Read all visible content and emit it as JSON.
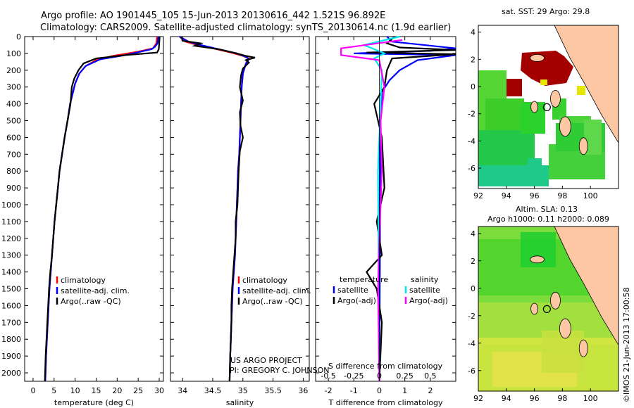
{
  "header": {
    "line1": "Argo profile: AO 1901445_105 15-Jun-2013 20130616_442 1.521S 96.892E",
    "line2": "Climatology: CARS2009. Satellite-adjusted climatology: synTS_20130614.nc (1.9d earlier)"
  },
  "colors": {
    "climatology": "#ff0000",
    "satellite": "#0000ff",
    "argo": "#000000",
    "sat_salinity": "#00e5ee",
    "argo_salinity": "#ff00ff"
  },
  "attribution": {
    "line1": "US ARGO PROJECT",
    "line2": "PI: GREGORY C. JOHNSON"
  },
  "map_sst": {
    "title": "sat. SST: 29 Argo: 29.8"
  },
  "map_sla": {
    "title1": "Altim. SLA: 0.13",
    "title2": "Argo h1000: 0.11 h2000: 0.089"
  },
  "side_label": "©IMOS 21-Jun-2013 17:00:58",
  "chart_data": [
    {
      "id": "temperature",
      "type": "line",
      "xlabel": "temperature (deg C)",
      "ylabel": "",
      "xlim": [
        -2,
        31
      ],
      "ylim": [
        0,
        2050
      ],
      "y_reversed": true,
      "xticks": [
        0,
        5,
        10,
        15,
        20,
        25,
        30
      ],
      "yticks": [
        0,
        100,
        200,
        300,
        400,
        500,
        600,
        700,
        800,
        900,
        1000,
        1100,
        1200,
        1300,
        1400,
        1500,
        1600,
        1700,
        1800,
        1900,
        2000
      ],
      "legend": [
        "climatology",
        "satellite-adj. clim.",
        "Argo(..raw -QC)"
      ],
      "series": [
        {
          "name": "climatology",
          "color": "#ff0000",
          "points": [
            [
              29.5,
              0
            ],
            [
              29.3,
              40
            ],
            [
              28.5,
              70
            ],
            [
              25,
              90
            ],
            [
              19,
              115
            ],
            [
              15,
              140
            ],
            [
              12.5,
              175
            ],
            [
              11,
              220
            ],
            [
              10,
              280
            ],
            [
              9.5,
              330
            ],
            [
              8.8,
              400
            ],
            [
              8.2,
              500
            ],
            [
              7.5,
              600
            ],
            [
              6.9,
              700
            ],
            [
              6.3,
              800
            ],
            [
              5.9,
              900
            ],
            [
              5.5,
              1000
            ],
            [
              5.1,
              1100
            ],
            [
              4.8,
              1200
            ],
            [
              4.5,
              1300
            ],
            [
              4.2,
              1400
            ],
            [
              3.9,
              1500
            ],
            [
              3.7,
              1600
            ],
            [
              3.5,
              1700
            ],
            [
              3.3,
              1800
            ],
            [
              3.1,
              1900
            ],
            [
              2.9,
              2050
            ]
          ]
        },
        {
          "name": "satellite-adj. clim.",
          "color": "#0000ff",
          "points": [
            [
              29.8,
              0
            ],
            [
              29.6,
              40
            ],
            [
              29,
              60
            ],
            [
              28.2,
              75
            ],
            [
              22,
              110
            ],
            [
              16,
              135
            ],
            [
              12.5,
              175
            ],
            [
              11,
              220
            ],
            [
              10,
              280
            ],
            [
              9.5,
              330
            ],
            [
              8.8,
              400
            ],
            [
              8.2,
              500
            ],
            [
              7.5,
              600
            ],
            [
              6.9,
              700
            ],
            [
              6.3,
              800
            ],
            [
              5.9,
              900
            ],
            [
              5.5,
              1000
            ],
            [
              5.1,
              1100
            ],
            [
              4.8,
              1200
            ],
            [
              4.5,
              1300
            ],
            [
              4.2,
              1400
            ],
            [
              3.9,
              1500
            ],
            [
              3.7,
              1600
            ],
            [
              3.5,
              1700
            ],
            [
              3.3,
              1800
            ],
            [
              3.1,
              1900
            ],
            [
              2.9,
              2050
            ]
          ]
        },
        {
          "name": "Argo(..raw -QC)",
          "color": "#000000",
          "points": [
            [
              30.1,
              0
            ],
            [
              30,
              40
            ],
            [
              29.9,
              75
            ],
            [
              29.5,
              95
            ],
            [
              22,
              110
            ],
            [
              15,
              130
            ],
            [
              12,
              160
            ],
            [
              10.8,
              200
            ],
            [
              9.8,
              250
            ],
            [
              9.2,
              300
            ],
            [
              8.9,
              400
            ],
            [
              8.2,
              500
            ],
            [
              7.5,
              600
            ],
            [
              6.9,
              700
            ],
            [
              6.3,
              800
            ],
            [
              5.9,
              900
            ],
            [
              5.5,
              1000
            ],
            [
              5.1,
              1100
            ],
            [
              4.8,
              1200
            ],
            [
              4.5,
              1300
            ],
            [
              4.1,
              1400
            ],
            [
              3.8,
              1500
            ],
            [
              3.6,
              1600
            ],
            [
              3.4,
              1700
            ],
            [
              3.2,
              1800
            ],
            [
              3.0,
              1900
            ],
            [
              2.8,
              2050
            ]
          ]
        }
      ]
    },
    {
      "id": "salinity",
      "type": "line",
      "xlabel": "salinity",
      "ylabel": "",
      "xlim": [
        33.8,
        36.1
      ],
      "ylim": [
        0,
        2050
      ],
      "y_reversed": true,
      "xticks": [
        34,
        34.5,
        35,
        35.5,
        36
      ],
      "legend": [
        "climatology",
        "satellite-adj. clim.",
        "Argo(..raw -QC)"
      ],
      "series": [
        {
          "name": "climatology",
          "color": "#ff0000",
          "points": [
            [
              33.95,
              0
            ],
            [
              34.05,
              30
            ],
            [
              34.2,
              45
            ],
            [
              34.5,
              70
            ],
            [
              34.8,
              95
            ],
            [
              35.0,
              115
            ],
            [
              35.1,
              130
            ],
            [
              35.05,
              160
            ],
            [
              35.0,
              220
            ],
            [
              34.98,
              300
            ],
            [
              34.97,
              400
            ],
            [
              34.96,
              500
            ],
            [
              34.95,
              600
            ],
            [
              34.94,
              700
            ],
            [
              34.92,
              800
            ],
            [
              34.91,
              900
            ],
            [
              34.9,
              1000
            ],
            [
              34.89,
              1100
            ],
            [
              34.88,
              1200
            ],
            [
              34.87,
              1300
            ],
            [
              34.85,
              1400
            ],
            [
              34.83,
              1500
            ],
            [
              34.82,
              1600
            ],
            [
              34.81,
              1700
            ],
            [
              34.8,
              1800
            ],
            [
              34.79,
              1900
            ],
            [
              34.78,
              2050
            ]
          ]
        },
        {
          "name": "satellite-adj. clim.",
          "color": "#0000ff",
          "points": [
            [
              33.95,
              0
            ],
            [
              34.1,
              30
            ],
            [
              34.3,
              50
            ],
            [
              34.6,
              75
            ],
            [
              34.9,
              100
            ],
            [
              35.05,
              120
            ],
            [
              35.1,
              135
            ],
            [
              35.05,
              160
            ],
            [
              35.0,
              220
            ],
            [
              34.98,
              300
            ],
            [
              34.97,
              400
            ],
            [
              34.96,
              500
            ],
            [
              34.95,
              600
            ],
            [
              34.94,
              700
            ],
            [
              34.92,
              800
            ],
            [
              34.91,
              900
            ],
            [
              34.9,
              1000
            ],
            [
              34.89,
              1100
            ],
            [
              34.88,
              1200
            ],
            [
              34.87,
              1300
            ],
            [
              34.85,
              1400
            ],
            [
              34.83,
              1500
            ],
            [
              34.82,
              1600
            ],
            [
              34.81,
              1700
            ],
            [
              34.8,
              1800
            ],
            [
              34.79,
              1900
            ],
            [
              34.78,
              2050
            ]
          ]
        },
        {
          "name": "Argo(..raw -QC)",
          "color": "#000000",
          "points": [
            [
              33.98,
              0
            ],
            [
              34.0,
              25
            ],
            [
              34.3,
              40
            ],
            [
              34.2,
              55
            ],
            [
              34.6,
              75
            ],
            [
              34.9,
              100
            ],
            [
              35.05,
              115
            ],
            [
              35.2,
              125
            ],
            [
              35.05,
              140
            ],
            [
              35.1,
              155
            ],
            [
              35.0,
              190
            ],
            [
              34.97,
              230
            ],
            [
              34.95,
              300
            ],
            [
              35.0,
              380
            ],
            [
              34.95,
              450
            ],
            [
              34.96,
              530
            ],
            [
              35.0,
              600
            ],
            [
              34.95,
              680
            ],
            [
              34.93,
              800
            ],
            [
              34.92,
              900
            ],
            [
              34.91,
              1000
            ],
            [
              34.88,
              1100
            ],
            [
              34.88,
              1200
            ],
            [
              34.86,
              1300
            ],
            [
              34.84,
              1400
            ],
            [
              34.82,
              1500
            ],
            [
              34.81,
              1600
            ],
            [
              34.81,
              1700
            ],
            [
              34.8,
              1800
            ],
            [
              34.79,
              1900
            ],
            [
              34.78,
              2050
            ]
          ]
        }
      ]
    },
    {
      "id": "difference",
      "type": "line",
      "xlabel": "T difference from climatology",
      "xlabel_top": "S difference from climatology",
      "xlim": [
        -2.5,
        3
      ],
      "ylim": [
        0,
        2050
      ],
      "y_reversed": true,
      "xticks": [
        -2,
        -1,
        0,
        1,
        2
      ],
      "xticks_s": [
        "-0.5",
        "-0.25",
        "0",
        "0.25",
        "0.5"
      ],
      "xticks_s_pos": [
        -2,
        -1,
        0,
        1,
        2
      ],
      "legend_t": {
        "heading": "temperature",
        "items": [
          "satellite",
          "Argo(-adj)"
        ]
      },
      "legend_s": {
        "heading": "salinity",
        "items": [
          "satellite",
          "Argo(-adj)"
        ]
      },
      "series": [
        {
          "name": "satellite",
          "color": "#0000ff",
          "points": [
            [
              0.3,
              0
            ],
            [
              0.5,
              30
            ],
            [
              3,
              70
            ],
            [
              2,
              85
            ],
            [
              -1,
              100
            ],
            [
              3,
              110
            ],
            [
              1.5,
              140
            ],
            [
              0.8,
              200
            ],
            [
              0.4,
              260
            ],
            [
              0.1,
              330
            ],
            [
              0.05,
              500
            ],
            [
              0,
              2050
            ]
          ]
        },
        {
          "name": "Argo(-adj)",
          "color": "#000000",
          "points": [
            [
              0.6,
              0
            ],
            [
              0.3,
              40
            ],
            [
              0.8,
              65
            ],
            [
              3,
              80
            ],
            [
              -0.5,
              95
            ],
            [
              3,
              105
            ],
            [
              0.5,
              130
            ],
            [
              0.3,
              200
            ],
            [
              0.2,
              300
            ],
            [
              -0.2,
              400
            ],
            [
              0.1,
              600
            ],
            [
              0.2,
              900
            ],
            [
              -0.1,
              1100
            ],
            [
              0.1,
              1300
            ],
            [
              -0.5,
              1400
            ],
            [
              -0.1,
              1500
            ],
            [
              0.1,
              1700
            ],
            [
              0,
              2050
            ]
          ]
        },
        {
          "name": "salinity satellite",
          "color": "#00e5ee",
          "points": [
            [
              0.8,
              0
            ],
            [
              -0.6,
              50
            ],
            [
              0.2,
              100
            ],
            [
              -0.2,
              130
            ],
            [
              0.1,
              200
            ],
            [
              0.05,
              400
            ],
            [
              -0.05,
              800
            ],
            [
              0,
              2050
            ]
          ]
        },
        {
          "name": "salinity Argo(-adj)",
          "color": "#ff00ff",
          "points": [
            [
              0.9,
              20
            ],
            [
              -1.5,
              70
            ],
            [
              -1.5,
              110
            ],
            [
              0,
              140
            ],
            [
              0.2,
              300
            ],
            [
              0.05,
              500
            ],
            [
              0.1,
              800
            ],
            [
              0,
              1200
            ],
            [
              -0.05,
              1500
            ],
            [
              0,
              2050
            ]
          ]
        }
      ]
    },
    {
      "id": "sst_map",
      "type": "heatmap",
      "title": "sat. SST: 29 Argo: 29.8",
      "xlim": [
        92,
        102
      ],
      "ylim": [
        -7.5,
        4.5
      ],
      "xticks": [
        92,
        94,
        96,
        98,
        100
      ],
      "yticks": [
        -6,
        -4,
        -2,
        0,
        2,
        4
      ],
      "argo_position": [
        96.892,
        -1.521
      ]
    },
    {
      "id": "sla_map",
      "type": "heatmap",
      "title": "Altim. SLA: 0.13",
      "subtitle": "Argo h1000: 0.11 h2000: 0.089",
      "xlim": [
        92,
        102
      ],
      "ylim": [
        -7.5,
        4.5
      ],
      "xticks": [
        92,
        94,
        96,
        98,
        100
      ],
      "yticks": [
        -6,
        -4,
        -2,
        0,
        2,
        4
      ],
      "argo_position": [
        96.892,
        -1.521
      ]
    }
  ]
}
